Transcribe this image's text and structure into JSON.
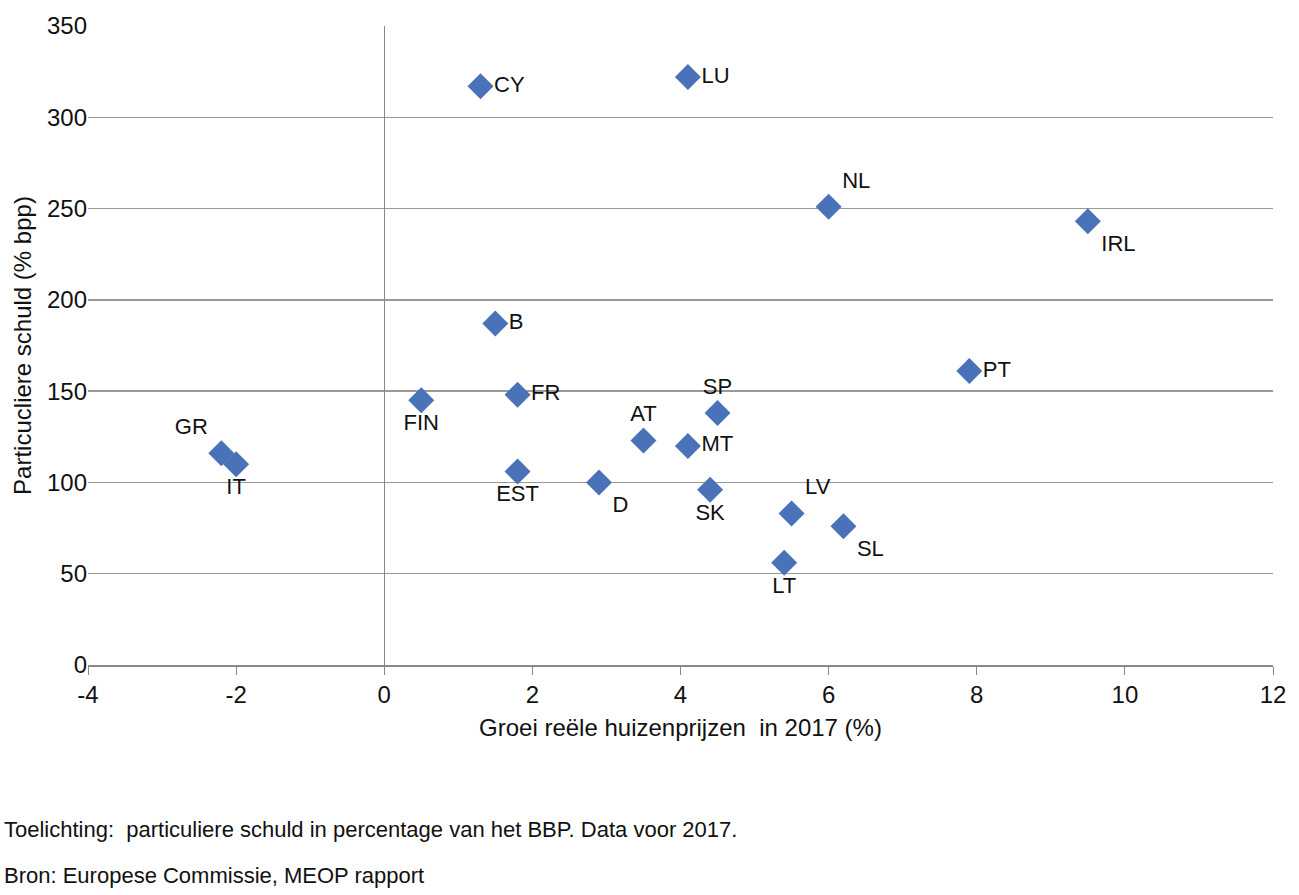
{
  "chart_data": {
    "type": "scatter",
    "x_label": "Groei reële huizenprijzen  in 2017 (%)",
    "y_label": "Particucliere schuld (% bpp)",
    "annotations": [
      "Toelichting:  particuliere schuld in percentage van het BBP. Data voor 2017.",
      "Bron: Europese Commissie, MEOP rapport"
    ],
    "labels": [
      "CY",
      "LU",
      "NL",
      "IRL",
      "B",
      "PT",
      "FIN",
      "FR",
      "SP",
      "AT",
      "MT",
      "GR",
      "IT",
      "EST",
      "D",
      "SK",
      "LV",
      "SL",
      "LT"
    ],
    "x": [
      1.3,
      4.1,
      6.0,
      9.5,
      1.5,
      7.9,
      0.5,
      1.8,
      4.5,
      3.5,
      4.1,
      -2.2,
      -2.0,
      1.8,
      2.9,
      4.4,
      5.5,
      6.2,
      5.4
    ],
    "values": [
      317,
      322,
      251,
      243,
      187,
      161,
      145,
      148,
      138,
      123,
      120,
      116,
      110,
      106,
      100,
      96,
      83,
      76,
      56
    ],
    "color": "#4a72b8",
    "marker": "diamond",
    "xlim": [
      -4,
      12
    ],
    "xticks": [
      -4,
      -2,
      0,
      2,
      4,
      6,
      8,
      10,
      12
    ],
    "ylim": [
      0,
      350
    ],
    "yticks": [
      0,
      50,
      100,
      150,
      200,
      250,
      300,
      350
    ],
    "grid": true
  }
}
